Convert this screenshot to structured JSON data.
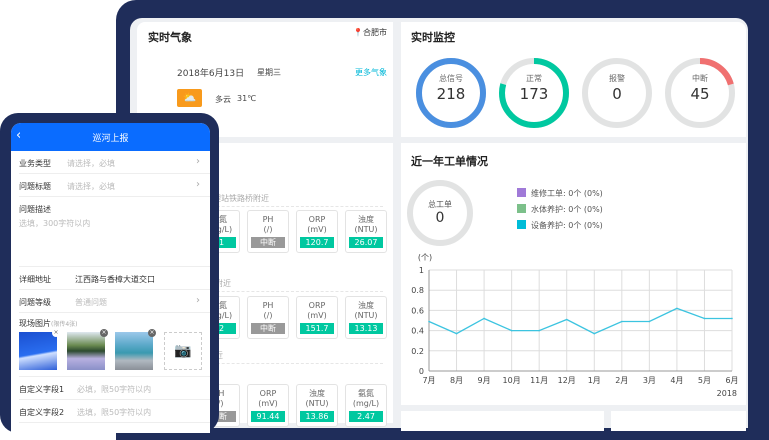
{
  "weather": {
    "title": "实时气象",
    "city": "合肥市",
    "date": "2018年6月13日",
    "weekday": "星期三",
    "more_link": "更多气象",
    "condition": "多云",
    "temperature": "31℃",
    "icon": "partly-cloudy-icon"
  },
  "monitor": {
    "title": "实时监控",
    "rings": [
      {
        "label": "总信号",
        "value": "218",
        "fraction": 1.0,
        "color": "#4a8fe0"
      },
      {
        "label": "正常",
        "value": "173",
        "fraction": 0.7936,
        "color": "#00c8a0"
      },
      {
        "label": "报警",
        "value": "0",
        "fraction": 0,
        "color": "#e05050"
      },
      {
        "label": "中断",
        "value": "45",
        "fraction": 0.2064,
        "color": "#f07070"
      }
    ]
  },
  "stations": [
    {
      "name": "水处理站铁路桥附近",
      "cards": [
        {
          "n": "氨氮",
          "u": "(mg/L)",
          "v": "71",
          "ok": true
        },
        {
          "n": "PH",
          "u": "(/)",
          "v": "中断",
          "ok": false
        },
        {
          "n": "ORP",
          "u": "(mV)",
          "v": "120.7",
          "ok": true
        },
        {
          "n": "浊度",
          "u": "(NTU)",
          "v": "26.07",
          "ok": true
        }
      ]
    },
    {
      "name": "桥附近",
      "cards": [
        {
          "n": "氨氮",
          "u": "(mg/L)",
          "v": "42",
          "ok": true
        },
        {
          "n": "PH",
          "u": "(/)",
          "v": "中断",
          "ok": false
        },
        {
          "n": "ORP",
          "u": "(mV)",
          "v": "151.7",
          "ok": true
        },
        {
          "n": "浊度",
          "u": "(NTU)",
          "v": "13.13",
          "ok": true
        }
      ]
    },
    {
      "name": "附近",
      "cards": [
        {
          "n": "PH",
          "u": "(/)",
          "v": "中断",
          "ok": false
        },
        {
          "n": "ORP",
          "u": "(mV)",
          "v": "91.44",
          "ok": true
        },
        {
          "n": "浊度",
          "u": "(NTU)",
          "v": "13.86",
          "ok": true
        },
        {
          "n": "氨氮",
          "u": "(mg/L)",
          "v": "2.47",
          "ok": true
        }
      ]
    }
  ],
  "workorders": {
    "title": "近一年工单情况",
    "total_label": "总工单",
    "total_value": "0",
    "legend": [
      {
        "label": "维修工单:  0个 (0%)",
        "color": "#a07ad8"
      },
      {
        "label": "水体养护:  0个 (0%)",
        "color": "#7cc08a"
      },
      {
        "label": "设备养护:  0个 (0%)",
        "color": "#00bcd8"
      }
    ]
  },
  "chart_data": {
    "type": "line",
    "ylabel": "(个)",
    "ylim": [
      0,
      1
    ],
    "yticks": [
      "0",
      "0.2",
      "0.4",
      "0.6",
      "0.8",
      "1"
    ],
    "categories": [
      "7月",
      "8月",
      "9月",
      "10月",
      "11月",
      "12月",
      "1月",
      "2月",
      "3月",
      "4月",
      "5月",
      "6月"
    ],
    "values": [
      0.49,
      0.37,
      0.52,
      0.4,
      0.4,
      0.51,
      0.37,
      0.49,
      0.49,
      0.62,
      0.52,
      0.52
    ],
    "year_label": "2018",
    "grid": true,
    "color": "#3cc4e0"
  },
  "phone": {
    "title": "巡河上报",
    "back_icon": "chevron-left-icon",
    "rows": [
      {
        "k": "业务类型",
        "p": "请选择，必填",
        "chev": true
      },
      {
        "k": "问题标题",
        "p": "请选择，必填",
        "chev": true
      }
    ],
    "desc_label": "问题描述",
    "desc_placeholder": "选填，300字符以内",
    "address_label": "详细地址",
    "address_value": "江西路与香樟大道交口",
    "level_label": "问题等级",
    "level_value": "普通问题",
    "photos_label": "现场图片",
    "photos_hint": "(限传4张)",
    "custom1_label": "自定义字段1",
    "custom1_placeholder": "必填，限50字符以内",
    "custom2_label": "自定义字段2",
    "custom2_placeholder": "选填，限50字符以内"
  }
}
